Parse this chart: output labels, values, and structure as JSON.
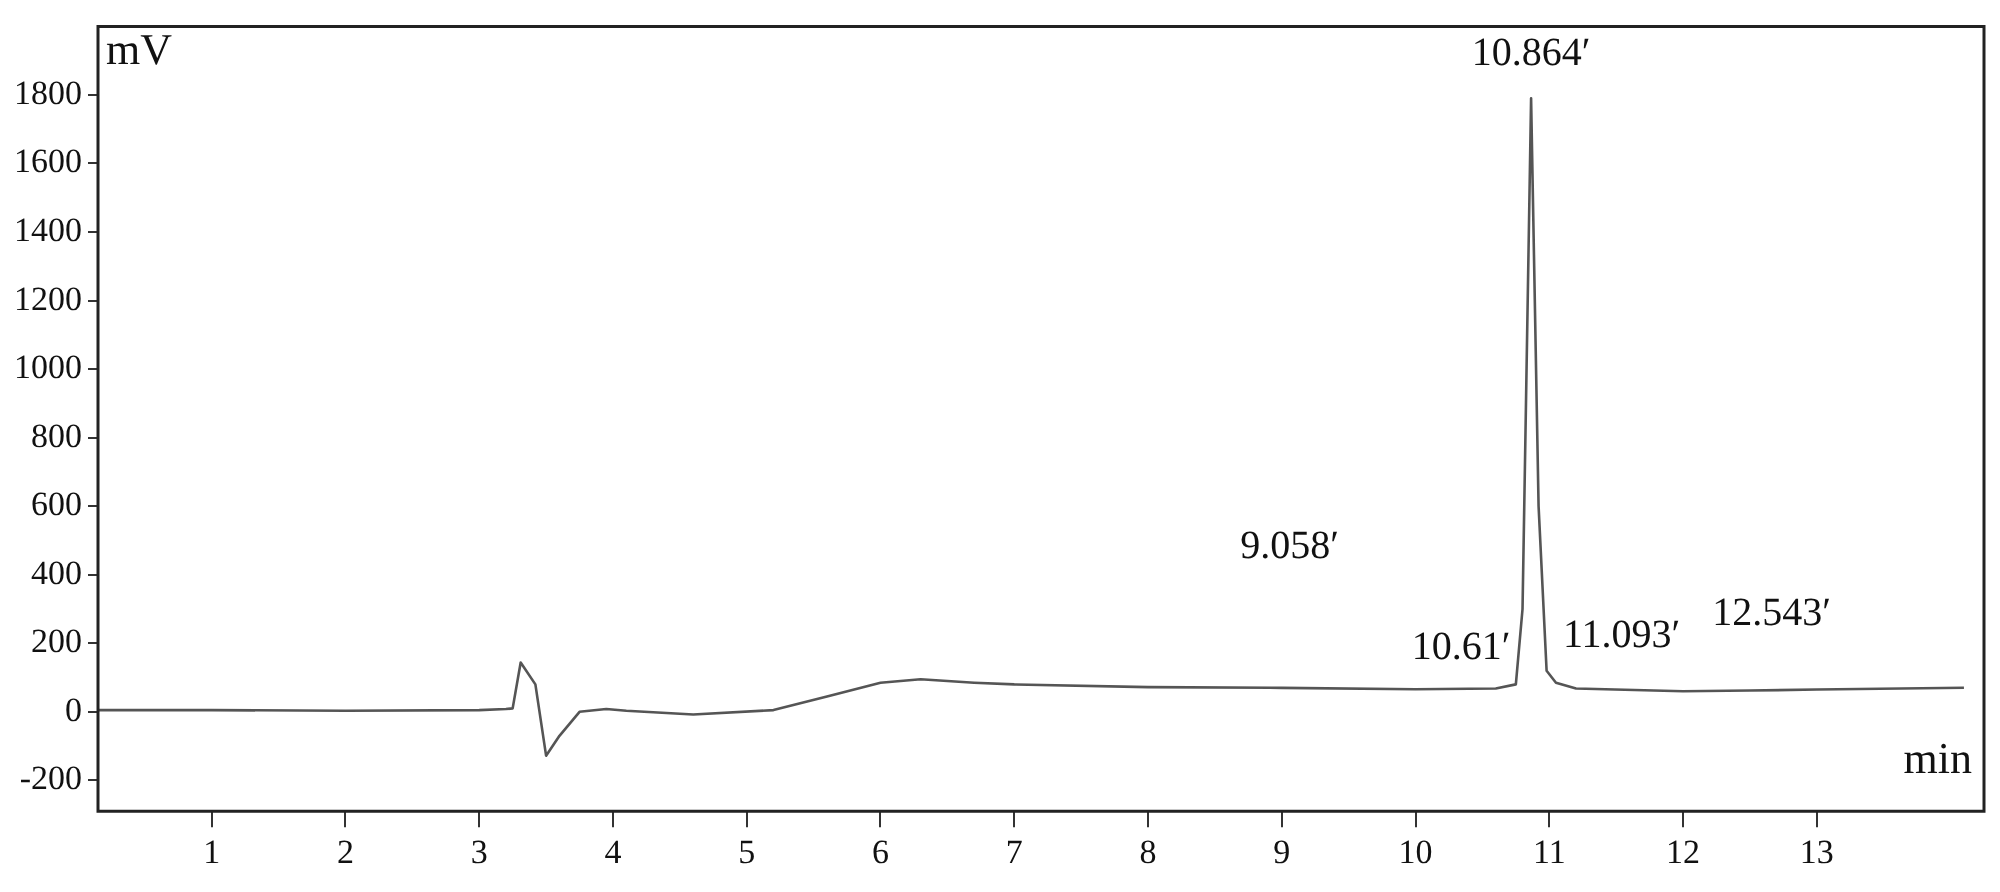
{
  "chart_data": {
    "type": "line",
    "xlabel": "min",
    "ylabel": "mV",
    "xlim": [
      0.15,
      14.25
    ],
    "xticks": [
      1,
      2,
      3,
      4,
      5,
      6,
      7,
      8,
      9,
      10,
      11,
      12,
      13
    ],
    "ylim": [
      -290,
      2000
    ],
    "yticks": [
      -200,
      0,
      200,
      400,
      600,
      800,
      1000,
      1200,
      1400,
      1600,
      1800
    ],
    "grid": false,
    "legend": false,
    "marker": "none",
    "line_style": "solid",
    "series": [
      {
        "color": "#555555",
        "x": [
          0.15,
          1,
          2,
          3,
          3.2,
          3.25,
          3.31,
          3.42,
          3.5,
          3.6,
          3.75,
          3.95,
          4.1,
          4.6,
          5.2,
          5.6,
          6.0,
          6.3,
          6.7,
          7.0,
          8,
          9,
          10,
          10.6,
          10.75,
          10.8,
          10.864,
          10.92,
          10.98,
          11.05,
          11.2,
          12,
          12.5,
          13,
          14.1
        ],
        "values": [
          5,
          5,
          3,
          5,
          8,
          10,
          144,
          80,
          -128,
          -70,
          0,
          8,
          3,
          -8,
          5,
          45,
          85,
          95,
          85,
          80,
          72,
          70,
          66,
          68,
          80,
          300,
          1790,
          600,
          120,
          85,
          68,
          60,
          62,
          65,
          70
        ]
      }
    ],
    "annotations": [
      {
        "text": "10.864′",
        "x": 10.864,
        "y": 1790
      },
      {
        "text": "9.058′",
        "x": 9.058,
        "y": 70
      },
      {
        "text": "10.61′",
        "x": 10.61,
        "y": 68
      },
      {
        "text": "11.093′",
        "x": 11.093,
        "y": 80
      },
      {
        "text": "12.543′",
        "x": 12.543,
        "y": 62
      }
    ]
  }
}
